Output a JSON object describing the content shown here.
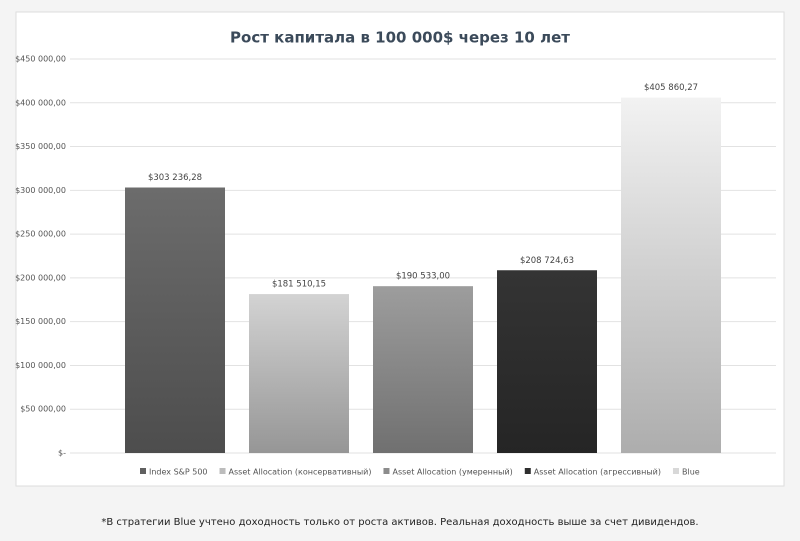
{
  "chart_data": {
    "type": "bar",
    "title": "Рост капитала в 100 000$ через 10 лет",
    "categories": [
      null
    ],
    "series": [
      {
        "name": "Index S&P 500",
        "color": "#606060",
        "values": [
          303236.28
        ],
        "value_labels": [
          "$303 236,28"
        ]
      },
      {
        "name": "Asset Allocation (консервативный)",
        "color": "#bcbcbc",
        "values": [
          181510.15
        ],
        "value_labels": [
          "$181 510,15"
        ]
      },
      {
        "name": "Asset Allocation (умеренный)",
        "color": "#8c8c8c",
        "values": [
          190533.0
        ],
        "value_labels": [
          "$190 533,00"
        ]
      },
      {
        "name": "Asset Allocation (агрессивный)",
        "color": "#2e2e2e",
        "values": [
          208724.63
        ],
        "value_labels": [
          "$208 724,63"
        ]
      },
      {
        "name": "Blue",
        "color": "#d8d8d8",
        "values": [
          405860.27
        ],
        "value_labels": [
          "$405 860,27"
        ]
      }
    ],
    "ylim": [
      0,
      450000
    ],
    "yticks": [
      {
        "value": 0,
        "label": "$-"
      },
      {
        "value": 50000,
        "label": "$50 000,00"
      },
      {
        "value": 100000,
        "label": "$100 000,00"
      },
      {
        "value": 150000,
        "label": "$150 000,00"
      },
      {
        "value": 200000,
        "label": "$200 000,00"
      },
      {
        "value": 250000,
        "label": "$250 000,00"
      },
      {
        "value": 300000,
        "label": "$300 000,00"
      },
      {
        "value": 350000,
        "label": "$350 000,00"
      },
      {
        "value": 400000,
        "label": "$400 000,00"
      },
      {
        "value": 450000,
        "label": "$450 000,00"
      }
    ],
    "grid": true,
    "legend": "bottom",
    "footnote": "*В стратегии Blue учтено доходность только от роста активов. Реальная доходность выше за счет дивидендов."
  }
}
